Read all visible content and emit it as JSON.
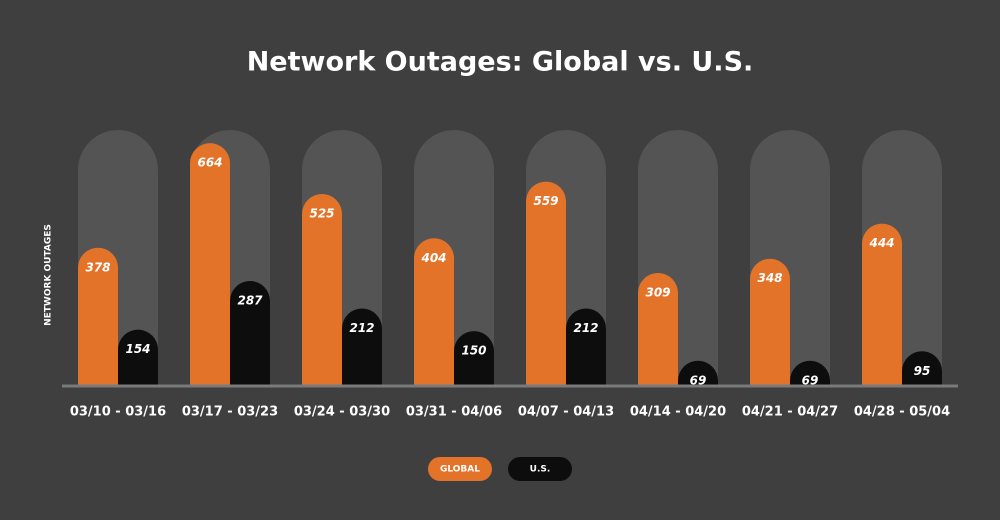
{
  "chart_data": {
    "type": "bar",
    "title": "Network Outages: Global vs. U.S.",
    "y_label": "NETWORK OUTAGES",
    "categories": [
      "03/10 - 03/16",
      "03/17 - 03/23",
      "03/24 - 03/30",
      "03/31 - 04/06",
      "04/07 - 04/13",
      "04/14 - 04/20",
      "04/21 - 04/27",
      "04/28 - 05/04"
    ],
    "series": [
      {
        "name": "GLOBAL",
        "color": "#e4732a",
        "values": [
          378,
          664,
          525,
          404,
          559,
          309,
          348,
          444
        ]
      },
      {
        "name": "U.S.",
        "color": "#0d0d0d",
        "values": [
          154,
          287,
          212,
          150,
          212,
          69,
          69,
          95
        ]
      }
    ],
    "ylim": [
      0,
      700
    ],
    "legend": "bottom"
  }
}
